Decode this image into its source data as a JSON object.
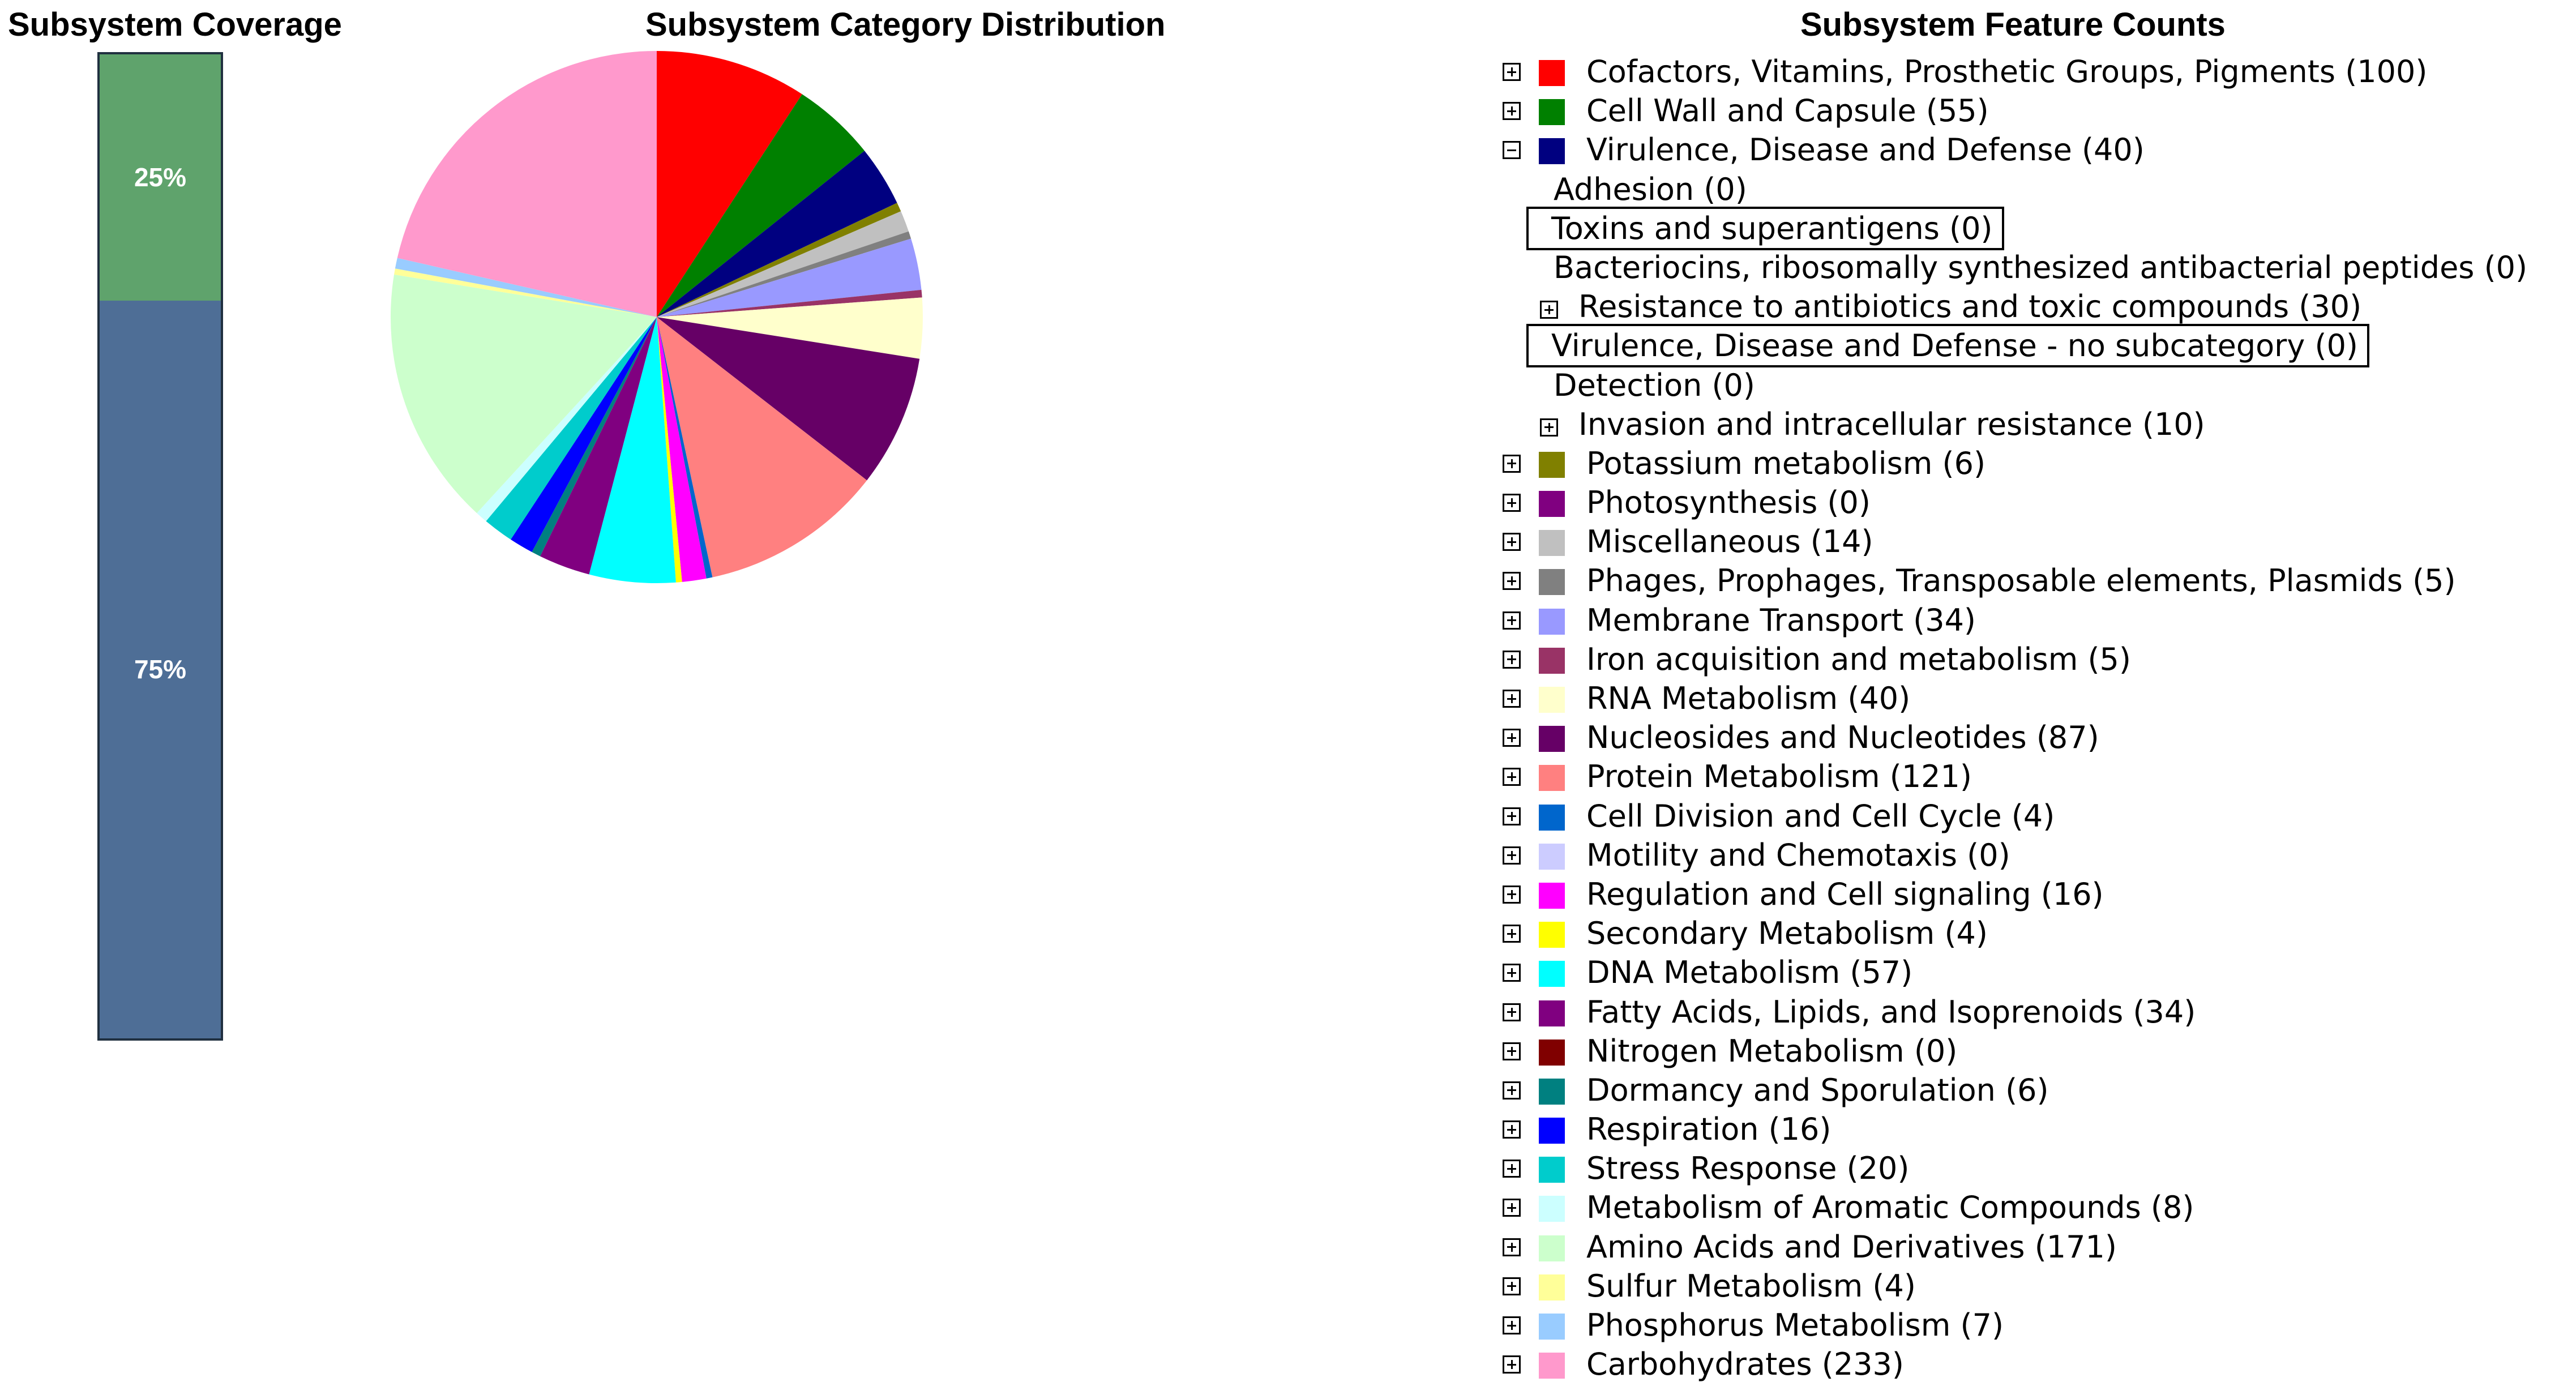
{
  "coverage": {
    "title": "Subsystem Coverage",
    "segments": [
      {
        "label": "25%",
        "value": 25,
        "color": "#5fa36c"
      },
      {
        "label": "75%",
        "value": 75,
        "color": "#4e6e96"
      }
    ]
  },
  "distribution": {
    "title": "Subsystem Category Distribution"
  },
  "features": {
    "title": "Subsystem Feature Counts",
    "tree": [
      {
        "label": "Cofactors, Vitamins, Prosthetic Groups, Pigments (100)",
        "color": "#ff0000",
        "expanded": false
      },
      {
        "label": "Cell Wall and Capsule (55)",
        "color": "#008000",
        "expanded": false
      },
      {
        "label": "Virulence, Disease and Defense (40)",
        "color": "#000080",
        "expanded": true
      },
      {
        "label": "Adhesion (0)",
        "sub": true
      },
      {
        "label": "Toxins and superantigens (0)",
        "sub": true,
        "boxed": true
      },
      {
        "label": "Bacteriocins, ribosomally synthesized antibacterial peptides (0)",
        "sub": true
      },
      {
        "label": "Resistance to antibiotics and toxic compounds (30)",
        "sub": true,
        "toggle": true
      },
      {
        "label": "Virulence, Disease and Defense - no subcategory (0)",
        "sub": true,
        "boxed": true
      },
      {
        "label": "Detection (0)",
        "sub": true
      },
      {
        "label": "Invasion and intracellular resistance (10)",
        "sub": true,
        "toggle": true
      },
      {
        "label": "Potassium metabolism (6)",
        "color": "#808000"
      },
      {
        "label": "Photosynthesis (0)",
        "color": "#800080"
      },
      {
        "label": "Miscellaneous (14)",
        "color": "#c0c0c0"
      },
      {
        "label": "Phages, Prophages, Transposable elements, Plasmids (5)",
        "color": "#808080"
      },
      {
        "label": "Membrane Transport (34)",
        "color": "#9999ff"
      },
      {
        "label": "Iron acquisition and metabolism (5)",
        "color": "#993366"
      },
      {
        "label": "RNA Metabolism (40)",
        "color": "#ffffcc"
      },
      {
        "label": "Nucleosides and Nucleotides (87)",
        "color": "#660066"
      },
      {
        "label": "Protein Metabolism (121)",
        "color": "#ff8080"
      },
      {
        "label": "Cell Division and Cell Cycle (4)",
        "color": "#0066cc"
      },
      {
        "label": "Motility and Chemotaxis (0)",
        "color": "#ccccff"
      },
      {
        "label": "Regulation and Cell signaling (16)",
        "color": "#ff00ff"
      },
      {
        "label": "Secondary Metabolism (4)",
        "color": "#ffff00"
      },
      {
        "label": "DNA Metabolism (57)",
        "color": "#00ffff"
      },
      {
        "label": "Fatty Acids, Lipids, and Isoprenoids (34)",
        "color": "#800080"
      },
      {
        "label": "Nitrogen Metabolism (0)",
        "color": "#800000"
      },
      {
        "label": "Dormancy and Sporulation (6)",
        "color": "#008080"
      },
      {
        "label": "Respiration (16)",
        "color": "#0000ff"
      },
      {
        "label": "Stress Response (20)",
        "color": "#00cccc"
      },
      {
        "label": "Metabolism of Aromatic Compounds (8)",
        "color": "#ccffff"
      },
      {
        "label": "Amino Acids and Derivatives (171)",
        "color": "#ccffcc"
      },
      {
        "label": "Sulfur Metabolism (4)",
        "color": "#ffff99"
      },
      {
        "label": "Phosphorus Metabolism (7)",
        "color": "#99ccff"
      },
      {
        "label": "Carbohydrates (233)",
        "color": "#ff99cc"
      }
    ]
  },
  "chart_data": {
    "type": "pie",
    "title": "Subsystem Category Distribution",
    "categories": [
      "Cofactors, Vitamins, Prosthetic Groups, Pigments",
      "Cell Wall and Capsule",
      "Virulence, Disease and Defense",
      "Potassium metabolism",
      "Photosynthesis",
      "Miscellaneous",
      "Phages, Prophages, Transposable elements, Plasmids",
      "Membrane Transport",
      "Iron acquisition and metabolism",
      "RNA Metabolism",
      "Nucleosides and Nucleotides",
      "Protein Metabolism",
      "Cell Division and Cell Cycle",
      "Motility and Chemotaxis",
      "Regulation and Cell signaling",
      "Secondary Metabolism",
      "DNA Metabolism",
      "Fatty Acids, Lipids, and Isoprenoids",
      "Nitrogen Metabolism",
      "Dormancy and Sporulation",
      "Respiration",
      "Stress Response",
      "Metabolism of Aromatic Compounds",
      "Amino Acids and Derivatives",
      "Sulfur Metabolism",
      "Phosphorus Metabolism",
      "Carbohydrates"
    ],
    "values": [
      100,
      55,
      40,
      6,
      0,
      14,
      5,
      34,
      5,
      40,
      87,
      121,
      4,
      0,
      16,
      4,
      57,
      34,
      0,
      6,
      16,
      20,
      8,
      171,
      4,
      7,
      233
    ],
    "colors": [
      "#ff0000",
      "#008000",
      "#000080",
      "#808000",
      "#800080",
      "#c0c0c0",
      "#808080",
      "#9999ff",
      "#993366",
      "#ffffcc",
      "#660066",
      "#ff8080",
      "#0066cc",
      "#ccccff",
      "#ff00ff",
      "#ffff00",
      "#00ffff",
      "#800080",
      "#800000",
      "#008080",
      "#0000ff",
      "#00cccc",
      "#ccffff",
      "#ccffcc",
      "#ffff99",
      "#99ccff",
      "#ff99cc"
    ],
    "start": "12 o'clock",
    "direction": "clockwise",
    "legend": "right"
  }
}
